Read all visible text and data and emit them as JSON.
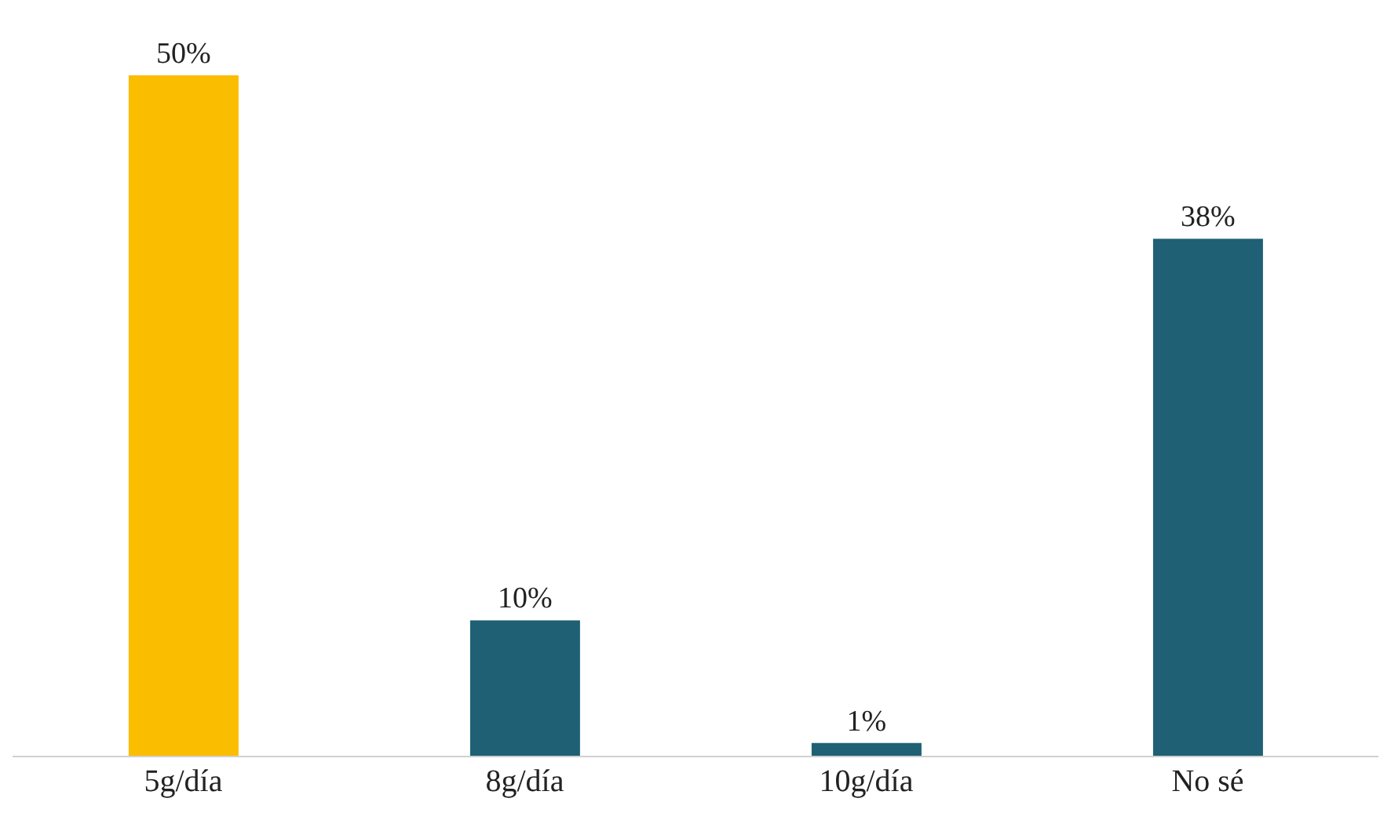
{
  "chart_data": {
    "type": "bar",
    "categories": [
      "5g/día",
      "8g/día",
      "10g/día",
      "No sé"
    ],
    "values": [
      50,
      10,
      1,
      38
    ],
    "colors": [
      "#fbbd00",
      "#1f6075",
      "#1f6075",
      "#1f6075"
    ],
    "value_labels": [
      "50%",
      "10%",
      "1%",
      "38%"
    ],
    "grid": false,
    "legend": false
  }
}
